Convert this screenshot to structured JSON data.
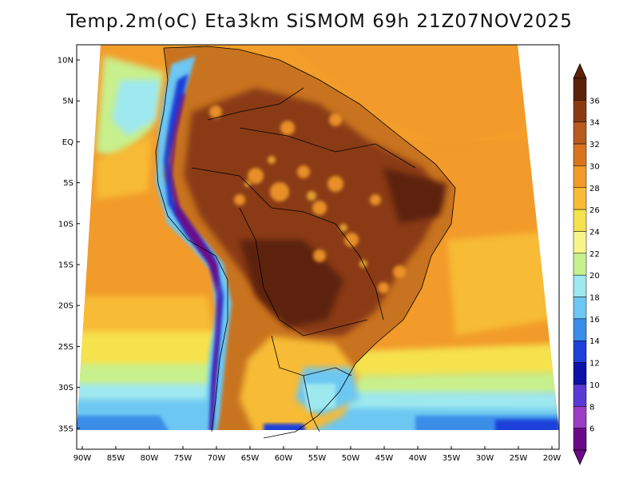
{
  "title": "Temp.2m(oC) Eta3km SiSMOM 69h 21Z07NOV2025",
  "lat_ticks": [
    "10N",
    "5N",
    "EQ",
    "5S",
    "10S",
    "15S",
    "20S",
    "25S",
    "30S",
    "35S"
  ],
  "lon_ticks": [
    "90W",
    "85W",
    "80W",
    "75W",
    "70W",
    "65W",
    "60W",
    "55W",
    "50W",
    "45W",
    "40W",
    "35W",
    "30W",
    "25W",
    "20W"
  ],
  "colorbar": {
    "labels": [
      "36",
      "34",
      "32",
      "30",
      "28",
      "26",
      "24",
      "22",
      "20",
      "18",
      "16",
      "14",
      "12",
      "10",
      "8",
      "6"
    ],
    "colors": [
      "#5c2208",
      "#8a3a12",
      "#b85a1e",
      "#d9731d",
      "#f29a2a",
      "#f7bb35",
      "#f5e24e",
      "#f8f48a",
      "#c8f08c",
      "#9ee8f0",
      "#6cc7f2",
      "#3a8ee8",
      "#1f3fd9",
      "#0a12a8",
      "#5a3ad4",
      "#9a3cc4",
      "#6a0a88"
    ]
  }
}
